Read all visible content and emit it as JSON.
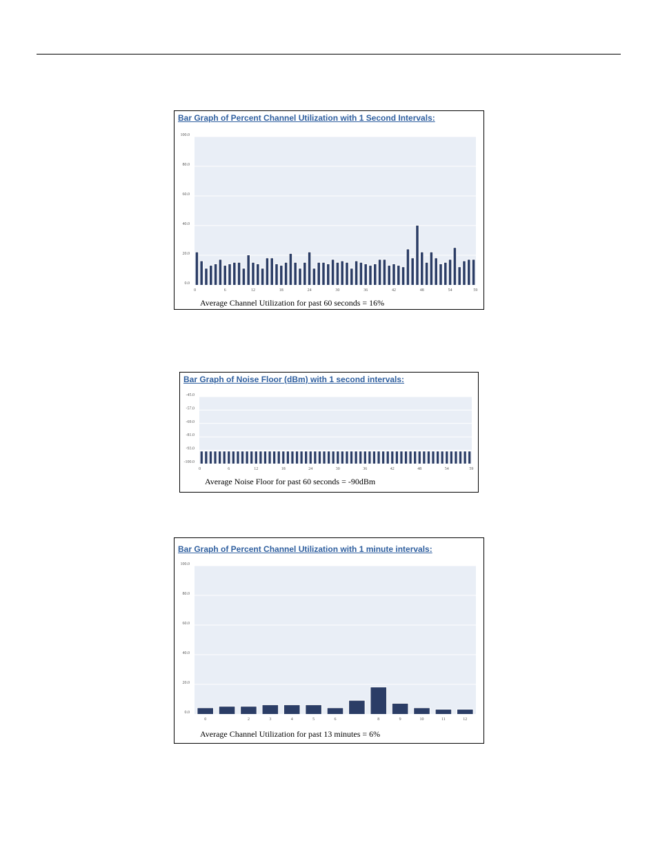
{
  "chart_data": [
    {
      "type": "bar",
      "title": "Bar Graph of Percent Channel Utilization with 1 Second Intervals:",
      "ylim": [
        0,
        100
      ],
      "ytick_labels": [
        "100.0",
        "80.0",
        "60.0",
        "40.0",
        "20.0",
        "0.0"
      ],
      "xtick_labels": [
        "0",
        "6",
        "12",
        "18",
        "24",
        "30",
        "36",
        "42",
        "48",
        "54",
        "59"
      ],
      "values": [
        22,
        16,
        11,
        13,
        14,
        17,
        13,
        14,
        15,
        15,
        11,
        20,
        15,
        14,
        11,
        18,
        18,
        14,
        13,
        15,
        21,
        15,
        11,
        15,
        22,
        11,
        15,
        15,
        14,
        17,
        15,
        16,
        15,
        11,
        16,
        15,
        14,
        13,
        14,
        17,
        17,
        13,
        14,
        13,
        12,
        24,
        18,
        40,
        22,
        15,
        22,
        18,
        14,
        15,
        17,
        25,
        12,
        16,
        17,
        17
      ],
      "caption": "Average Channel Utilization for past 60 seconds = 16%",
      "grid": true,
      "bar_color": "#2b3d66",
      "plot_bg": "#e9eef6"
    },
    {
      "type": "bar",
      "title": "Bar Graph of Noise Floor (dBm) with 1 second intervals:",
      "ylim": [
        -100,
        -45
      ],
      "ytick_labels": [
        "-45.0",
        "-57.0",
        "-69.0",
        "-81.0",
        "-93.0",
        "-100.0"
      ],
      "xtick_labels": [
        "0",
        "6",
        "12",
        "18",
        "24",
        "30",
        "36",
        "42",
        "48",
        "54",
        "59"
      ],
      "values": [
        -90,
        -90,
        -90,
        -90,
        -90,
        -90,
        -90,
        -90,
        -90,
        -90,
        -90,
        -90,
        -90,
        -90,
        -90,
        -90,
        -90,
        -90,
        -90,
        -90,
        -90,
        -90,
        -90,
        -90,
        -90,
        -90,
        -90,
        -90,
        -90,
        -90,
        -90,
        -90,
        -90,
        -90,
        -90,
        -90,
        -90,
        -90,
        -90,
        -90,
        -90,
        -90,
        -90,
        -90,
        -90,
        -90,
        -90,
        -90,
        -90,
        -90,
        -90,
        -90,
        -90,
        -90,
        -90,
        -90,
        -90,
        -90,
        -90,
        -90
      ],
      "caption": "Average Noise Floor for past 60 seconds = -90dBm",
      "grid": true,
      "bar_color": "#2b3d66",
      "plot_bg": "#e9eef6"
    },
    {
      "type": "bar",
      "title": "Bar Graph of Percent Channel Utilization with 1 minute intervals:",
      "ylim": [
        0,
        100
      ],
      "ytick_labels": [
        "100.0",
        "80.0",
        "60.0",
        "40.0",
        "20.0",
        "0.0"
      ],
      "xtick_labels": [
        "0",
        "",
        "2",
        "3",
        "4",
        "5",
        "6",
        "",
        "8",
        "9",
        "10",
        "11",
        "12"
      ],
      "values": [
        4,
        5,
        5,
        6,
        6,
        6,
        4,
        9,
        18,
        7,
        4,
        3,
        3
      ],
      "caption": "Average Channel Utilization for past 13 minutes = 6%",
      "grid": true,
      "bar_color": "#2b3d66",
      "plot_bg": "#e9eef6"
    }
  ]
}
